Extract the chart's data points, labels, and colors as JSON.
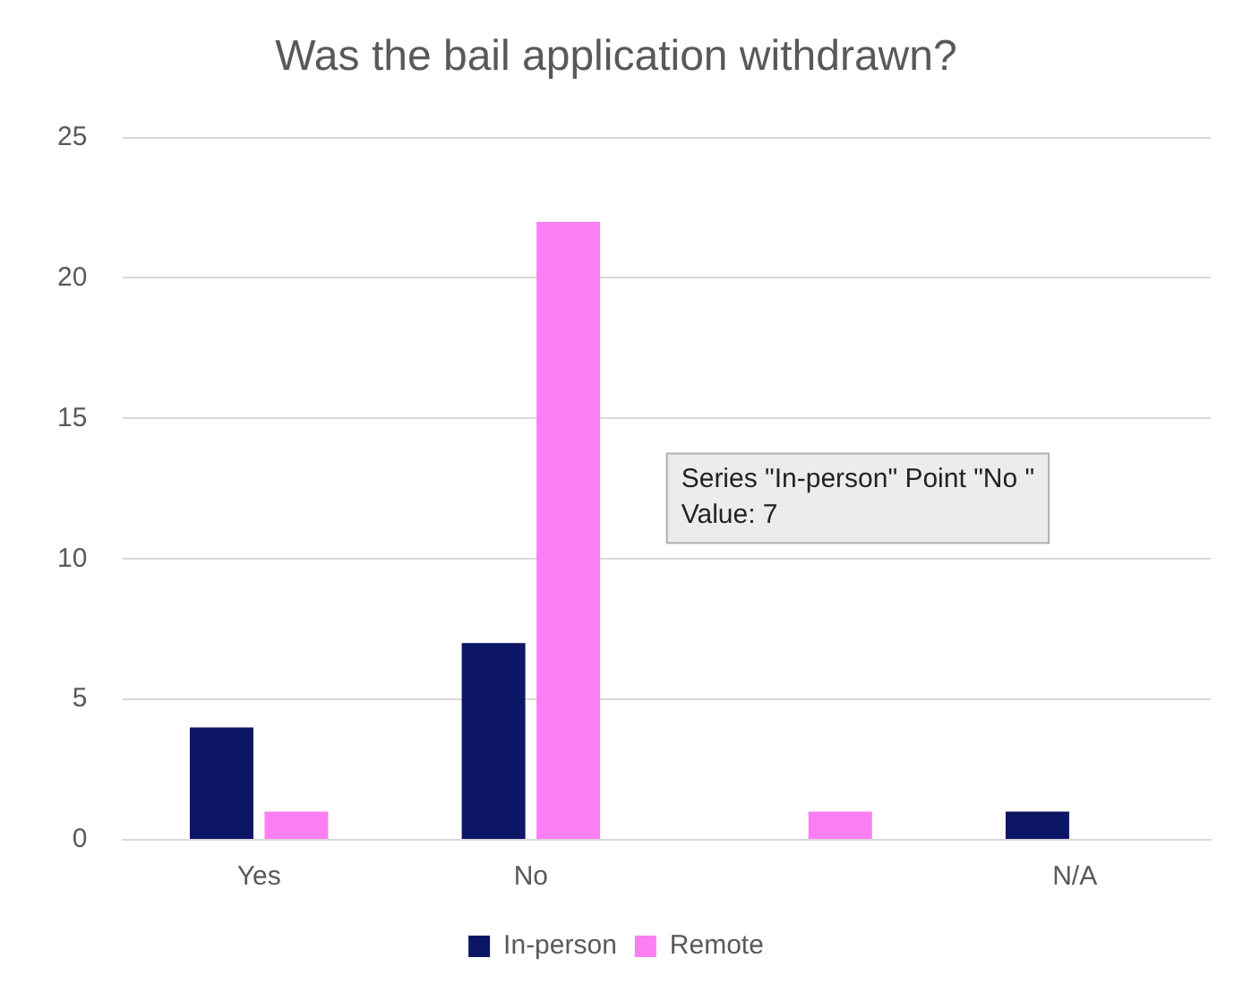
{
  "chart_data": {
    "type": "bar",
    "title": "Was the bail application withdrawn?",
    "categories": [
      "Yes",
      "No",
      null,
      "N/A"
    ],
    "series": [
      {
        "name": "In-person",
        "color": "#0c1664",
        "values": [
          4,
          7,
          0,
          1
        ]
      },
      {
        "name": "Remote",
        "color": "#fb7ff3",
        "values": [
          1,
          22,
          1,
          0
        ]
      }
    ],
    "ylim": [
      0,
      25
    ],
    "yticks": [
      0,
      5,
      10,
      15,
      20,
      25
    ],
    "grid": "y",
    "legend": "bottom",
    "annotations": [
      "Series \"In-person\" Point \"No \"\nValue: 7"
    ]
  }
}
